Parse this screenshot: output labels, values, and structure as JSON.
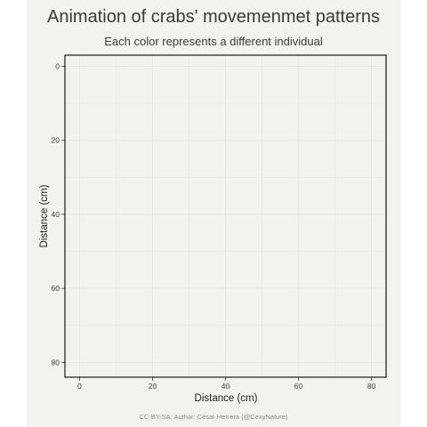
{
  "header": {
    "title": "Animation of crabs' movemenmet patterns",
    "subtitle": "Each color represents a different individual"
  },
  "footer": {
    "caption": "CC-BY-SA; Author: César Herrera (@CexyNature)"
  },
  "colors": {
    "background": "#f2f2ee",
    "panel_border": "#1a1a1a",
    "grid": "#e6e6e0",
    "text": "#3a3a3a"
  },
  "chart_data": {
    "type": "scatter",
    "title": "Animation of crabs' movemenmet patterns",
    "subtitle": "Each color represents a different individual",
    "xlabel": "Distance (cm)",
    "ylabel": "Distance (cm)",
    "xlim": [
      -4,
      84
    ],
    "ylim": [
      -3,
      84
    ],
    "y_reversed": true,
    "x_ticks": [
      0,
      20,
      40,
      60,
      80
    ],
    "y_ticks": [
      0,
      20,
      40,
      60,
      80
    ],
    "grid": true,
    "series": []
  }
}
